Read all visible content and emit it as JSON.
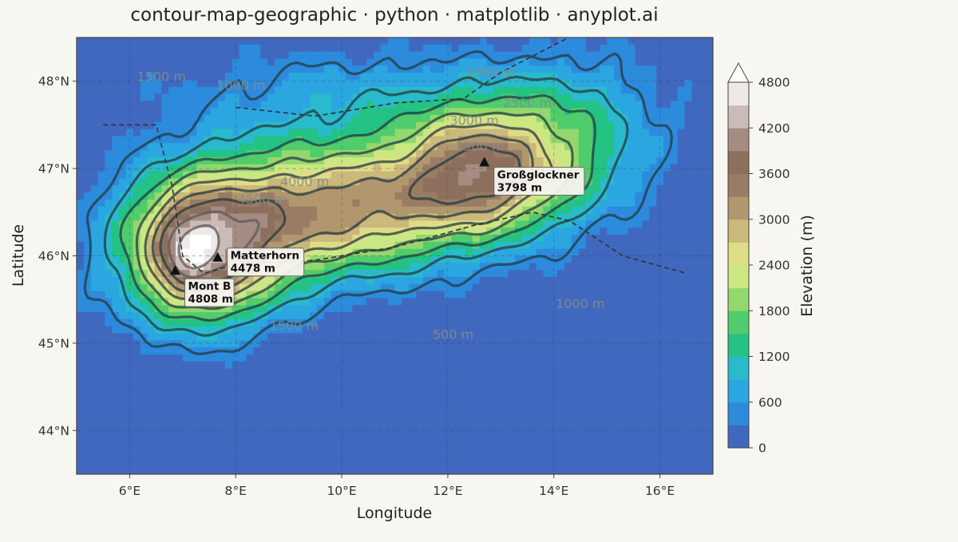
{
  "chart_data": {
    "type": "heatmap",
    "title": "contour-map-geographic · python · matplotlib · anyplot.ai",
    "xlabel": "Longitude",
    "ylabel": "Latitude",
    "xlim": [
      5,
      17
    ],
    "ylim": [
      43.5,
      48.5
    ],
    "xticks": [
      {
        "value": 6,
        "label": "6°E"
      },
      {
        "value": 8,
        "label": "8°E"
      },
      {
        "value": 10,
        "label": "10°E"
      },
      {
        "value": 12,
        "label": "12°E"
      },
      {
        "value": 14,
        "label": "14°E"
      },
      {
        "value": 16,
        "label": "16°E"
      }
    ],
    "yticks": [
      {
        "value": 44,
        "label": "44°N"
      },
      {
        "value": 45,
        "label": "45°N"
      },
      {
        "value": 46,
        "label": "46°N"
      },
      {
        "value": 47,
        "label": "47°N"
      },
      {
        "value": 48,
        "label": "48°N"
      }
    ],
    "grid": true,
    "colorbar": {
      "label": "Elevation (m)",
      "range": [
        0,
        4800
      ],
      "extend": "max",
      "ticks": [
        0,
        600,
        1200,
        1800,
        2400,
        3000,
        3600,
        4200,
        4800
      ],
      "tick_labels": [
        "0",
        "600",
        "1200",
        "1800",
        "2400",
        "3000",
        "3600",
        "4200",
        "4800"
      ],
      "colormap": [
        "#4a57b0",
        "#2a8ee0",
        "#2bb8e0",
        "#22c46e",
        "#8dd66b",
        "#e7ef8c",
        "#c9b47a",
        "#9c8064",
        "#8a6b5d",
        "#c7b6b1",
        "#ffffff"
      ]
    },
    "contour_levels": [
      500,
      1000,
      1500,
      2000,
      2500,
      3000,
      3500,
      4000,
      4500
    ],
    "contour_labels": [
      {
        "text": "500 m",
        "lon": 12.1,
        "lat": 45.05
      },
      {
        "text": "1000 m",
        "lon": 14.5,
        "lat": 45.4
      },
      {
        "text": "1500 m",
        "lon": 9.1,
        "lat": 45.15
      },
      {
        "text": "2000 m",
        "lon": 12.8,
        "lat": 48.05
      },
      {
        "text": "2500 m",
        "lon": 13.5,
        "lat": 47.7
      },
      {
        "text": "3000 m",
        "lon": 12.5,
        "lat": 47.5
      },
      {
        "text": "3500 m",
        "lon": 12.6,
        "lat": 47.2
      },
      {
        "text": "4000 m",
        "lon": 9.3,
        "lat": 46.8
      },
      {
        "text": "4500 m",
        "lon": 8.5,
        "lat": 46.6
      },
      {
        "text": "1000 m",
        "lon": 8.1,
        "lat": 47.9
      },
      {
        "text": "1500 m",
        "lon": 6.6,
        "lat": 48.0
      }
    ],
    "peaks": [
      {
        "name": "Mont Blanc",
        "display": "Mont B",
        "elevation_label": "4808 m",
        "lon": 6.86,
        "lat": 45.83
      },
      {
        "name": "Matterhorn",
        "display": "Matterhorn",
        "elevation_label": "4478 m",
        "lon": 7.66,
        "lat": 45.98
      },
      {
        "name": "Großglockner",
        "display": "Großglockner",
        "elevation_label": "3798 m",
        "lon": 12.69,
        "lat": 47.07
      }
    ],
    "borders": [
      [
        [
          5.5,
          47.5
        ],
        [
          6.5,
          47.5
        ],
        [
          6.8,
          46.8
        ],
        [
          7.0,
          46.0
        ],
        [
          7.4,
          45.8
        ],
        [
          8.0,
          45.9
        ],
        [
          9.5,
          45.95
        ],
        [
          11.0,
          46.1
        ],
        [
          12.5,
          46.35
        ],
        [
          13.6,
          46.5
        ],
        [
          14.3,
          46.4
        ],
        [
          15.3,
          46.0
        ],
        [
          16.5,
          45.8
        ]
      ],
      [
        [
          8.0,
          47.7
        ],
        [
          9.5,
          47.6
        ],
        [
          11.0,
          47.75
        ],
        [
          12.3,
          47.8
        ],
        [
          13.0,
          48.1
        ],
        [
          14.6,
          48.6
        ]
      ]
    ]
  }
}
